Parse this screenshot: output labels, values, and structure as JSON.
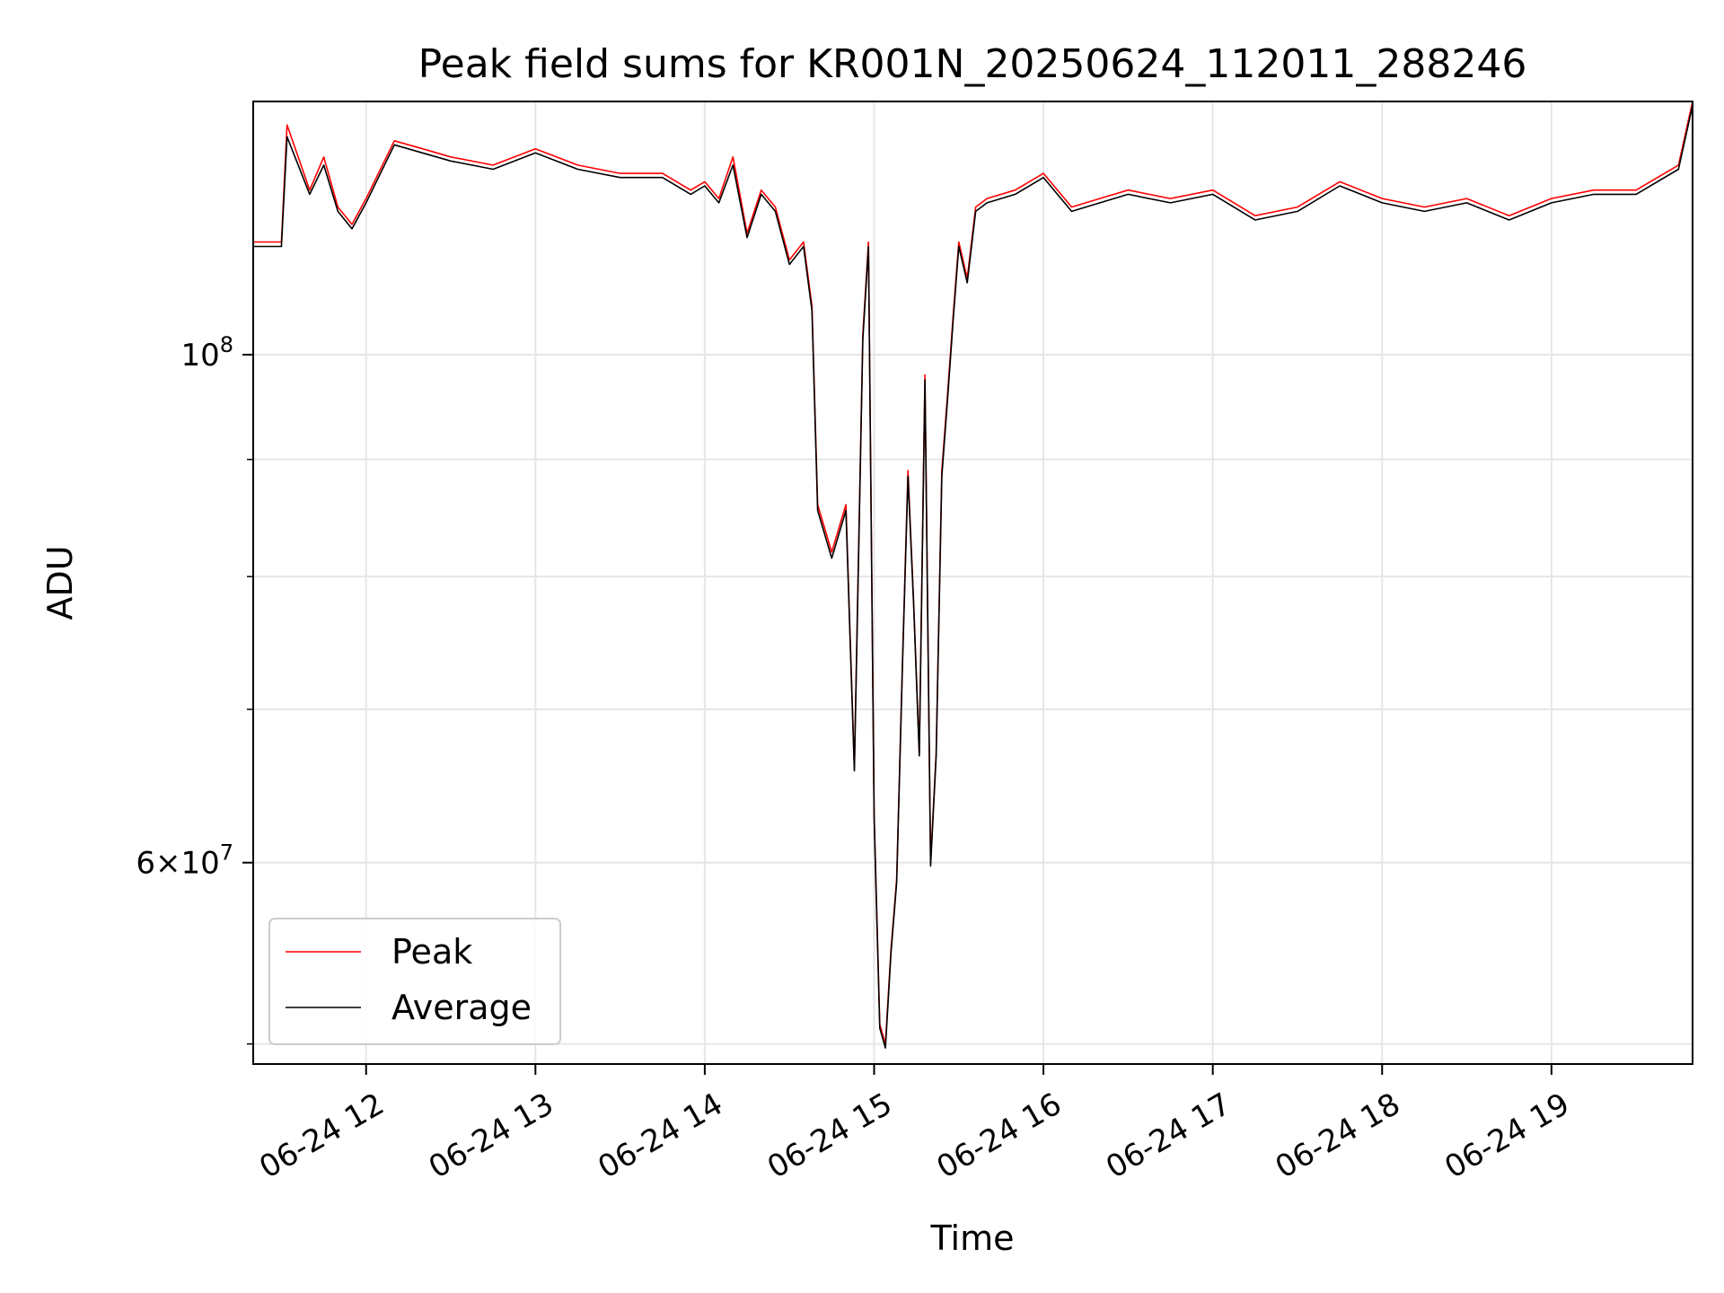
{
  "colors": {
    "peak": "#ff0000",
    "average": "#000000",
    "grid": "#e6e6e6",
    "axis": "#000000",
    "legend_border": "#cccccc"
  },
  "chart_data": {
    "type": "line",
    "title": "Peak field sums for KR001N_20250624_112011_288246",
    "xlabel": "Time",
    "ylabel": "ADU",
    "y_scale": "log",
    "grid": true,
    "legend_position": "lower-left",
    "xlim": [
      "2025-06-24 11:20",
      "2025-06-24 19:50"
    ],
    "ylim": [
      49000000,
      129000000
    ],
    "x_ticks": [
      {
        "value": "2025-06-24 12:00",
        "label": "06-24 12"
      },
      {
        "value": "2025-06-24 13:00",
        "label": "06-24 13"
      },
      {
        "value": "2025-06-24 14:00",
        "label": "06-24 14"
      },
      {
        "value": "2025-06-24 15:00",
        "label": "06-24 15"
      },
      {
        "value": "2025-06-24 16:00",
        "label": "06-24 16"
      },
      {
        "value": "2025-06-24 17:00",
        "label": "06-24 17"
      },
      {
        "value": "2025-06-24 18:00",
        "label": "06-24 18"
      },
      {
        "value": "2025-06-24 19:00",
        "label": "06-24 19"
      }
    ],
    "y_ticks_major": [
      {
        "value": 100000000,
        "base": "10",
        "exp": "8"
      },
      {
        "value": 60000000,
        "mant": "6",
        "base": "10",
        "exp": "7"
      }
    ],
    "y_ticks_minor": [
      50000000,
      70000000,
      80000000,
      90000000
    ],
    "series": [
      {
        "name": "Peak",
        "color": "#ff0000",
        "x": [
          "2025-06-24 11:20",
          "2025-06-24 11:30",
          "2025-06-24 11:32",
          "2025-06-24 11:40",
          "2025-06-24 11:45",
          "2025-06-24 11:50",
          "2025-06-24 11:55",
          "2025-06-24 12:00",
          "2025-06-24 12:10",
          "2025-06-24 12:20",
          "2025-06-24 12:30",
          "2025-06-24 12:45",
          "2025-06-24 13:00",
          "2025-06-24 13:15",
          "2025-06-24 13:30",
          "2025-06-24 13:45",
          "2025-06-24 13:55",
          "2025-06-24 14:00",
          "2025-06-24 14:05",
          "2025-06-24 14:10",
          "2025-06-24 14:15",
          "2025-06-24 14:20",
          "2025-06-24 14:25",
          "2025-06-24 14:30",
          "2025-06-24 14:35",
          "2025-06-24 14:38",
          "2025-06-24 14:40",
          "2025-06-24 14:45",
          "2025-06-24 14:50",
          "2025-06-24 14:53",
          "2025-06-24 14:56",
          "2025-06-24 14:58",
          "2025-06-24 15:00",
          "2025-06-24 15:02",
          "2025-06-24 15:04",
          "2025-06-24 15:06",
          "2025-06-24 15:08",
          "2025-06-24 15:10",
          "2025-06-24 15:12",
          "2025-06-24 15:14",
          "2025-06-24 15:16",
          "2025-06-24 15:18",
          "2025-06-24 15:20",
          "2025-06-24 15:22",
          "2025-06-24 15:24",
          "2025-06-24 15:26",
          "2025-06-24 15:28",
          "2025-06-24 15:30",
          "2025-06-24 15:33",
          "2025-06-24 15:36",
          "2025-06-24 15:40",
          "2025-06-24 15:50",
          "2025-06-24 16:00",
          "2025-06-24 16:10",
          "2025-06-24 16:20",
          "2025-06-24 16:30",
          "2025-06-24 16:45",
          "2025-06-24 17:00",
          "2025-06-24 17:15",
          "2025-06-24 17:30",
          "2025-06-24 17:45",
          "2025-06-24 18:00",
          "2025-06-24 18:15",
          "2025-06-24 18:30",
          "2025-06-24 18:45",
          "2025-06-24 19:00",
          "2025-06-24 19:15",
          "2025-06-24 19:30",
          "2025-06-24 19:45",
          "2025-06-24 19:50"
        ],
        "y": [
          112000000,
          112000000,
          126000000,
          118000000,
          122000000,
          116000000,
          114000000,
          117000000,
          124000000,
          123000000,
          122000000,
          121000000,
          123000000,
          121000000,
          120000000,
          120000000,
          118000000,
          119000000,
          117000000,
          122000000,
          113000000,
          118000000,
          116000000,
          110000000,
          112000000,
          105000000,
          86000000,
          82000000,
          86000000,
          66000000,
          102000000,
          112000000,
          63000000,
          51000000,
          50000000,
          55000000,
          59000000,
          73000000,
          89000000,
          78000000,
          67000000,
          98000000,
          60000000,
          67000000,
          89000000,
          96000000,
          104000000,
          112000000,
          108000000,
          116000000,
          117000000,
          118000000,
          120000000,
          116000000,
          117000000,
          118000000,
          117000000,
          118000000,
          115000000,
          116000000,
          119000000,
          117000000,
          116000000,
          117000000,
          115000000,
          117000000,
          118000000,
          118000000,
          121000000,
          129000000
        ]
      },
      {
        "name": "Average",
        "color": "#000000",
        "x": [
          "2025-06-24 11:20",
          "2025-06-24 11:30",
          "2025-06-24 11:32",
          "2025-06-24 11:40",
          "2025-06-24 11:45",
          "2025-06-24 11:50",
          "2025-06-24 11:55",
          "2025-06-24 12:00",
          "2025-06-24 12:10",
          "2025-06-24 12:20",
          "2025-06-24 12:30",
          "2025-06-24 12:45",
          "2025-06-24 13:00",
          "2025-06-24 13:15",
          "2025-06-24 13:30",
          "2025-06-24 13:45",
          "2025-06-24 13:55",
          "2025-06-24 14:00",
          "2025-06-24 14:05",
          "2025-06-24 14:10",
          "2025-06-24 14:15",
          "2025-06-24 14:20",
          "2025-06-24 14:25",
          "2025-06-24 14:30",
          "2025-06-24 14:35",
          "2025-06-24 14:38",
          "2025-06-24 14:40",
          "2025-06-24 14:45",
          "2025-06-24 14:50",
          "2025-06-24 14:53",
          "2025-06-24 14:56",
          "2025-06-24 14:58",
          "2025-06-24 15:00",
          "2025-06-24 15:02",
          "2025-06-24 15:04",
          "2025-06-24 15:06",
          "2025-06-24 15:08",
          "2025-06-24 15:10",
          "2025-06-24 15:12",
          "2025-06-24 15:14",
          "2025-06-24 15:16",
          "2025-06-24 15:18",
          "2025-06-24 15:20",
          "2025-06-24 15:22",
          "2025-06-24 15:24",
          "2025-06-24 15:26",
          "2025-06-24 15:28",
          "2025-06-24 15:30",
          "2025-06-24 15:33",
          "2025-06-24 15:36",
          "2025-06-24 15:40",
          "2025-06-24 15:50",
          "2025-06-24 16:00",
          "2025-06-24 16:10",
          "2025-06-24 16:20",
          "2025-06-24 16:30",
          "2025-06-24 16:45",
          "2025-06-24 17:00",
          "2025-06-24 17:15",
          "2025-06-24 17:30",
          "2025-06-24 17:45",
          "2025-06-24 18:00",
          "2025-06-24 18:15",
          "2025-06-24 18:30",
          "2025-06-24 18:45",
          "2025-06-24 19:00",
          "2025-06-24 19:15",
          "2025-06-24 19:30",
          "2025-06-24 19:45",
          "2025-06-24 19:50"
        ],
        "y": [
          111500000,
          111500000,
          124500000,
          117500000,
          121000000,
          115500000,
          113500000,
          116500000,
          123500000,
          122500000,
          121500000,
          120500000,
          122500000,
          120500000,
          119500000,
          119500000,
          117500000,
          118500000,
          116500000,
          121000000,
          112500000,
          117500000,
          115500000,
          109500000,
          111500000,
          104500000,
          85500000,
          81500000,
          85500000,
          65800000,
          101500000,
          111500000,
          62800000,
          50800000,
          49800000,
          54800000,
          58800000,
          72800000,
          88500000,
          77800000,
          66800000,
          97500000,
          59800000,
          66800000,
          88500000,
          95500000,
          103500000,
          111500000,
          107500000,
          115500000,
          116500000,
          117500000,
          119500000,
          115500000,
          116500000,
          117500000,
          116500000,
          117500000,
          114500000,
          115500000,
          118500000,
          116500000,
          115500000,
          116500000,
          114500000,
          116500000,
          117500000,
          117500000,
          120500000,
          128500000
        ]
      }
    ]
  }
}
